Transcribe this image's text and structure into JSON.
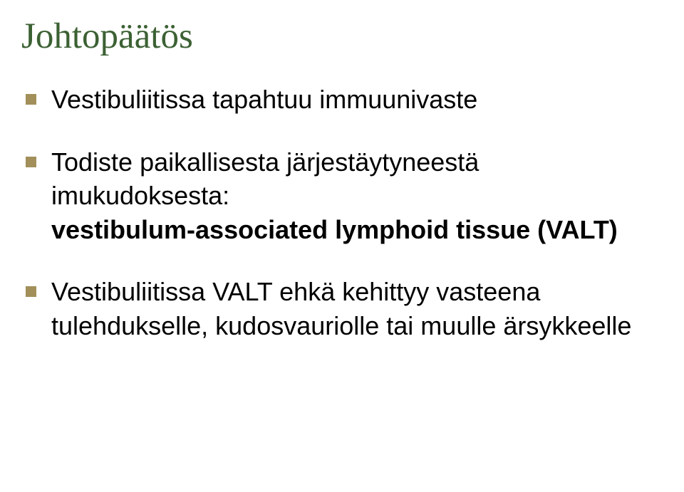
{
  "title": "Johtopäätös",
  "bullets": [
    {
      "plain": "Vestibuliitissa tapahtuu immuunivaste"
    },
    {
      "plain_prefix": "Todiste paikallisesta järjestäytyneestä imukudoksesta:",
      "bold": "vestibulum-associated lymphoid tissue (VALT)"
    },
    {
      "plain": "Vestibuliitissa VALT ehkä kehittyy vasteena tulehdukselle, kudosvauriolle tai muulle ärsykkeelle"
    }
  ],
  "colors": {
    "title_color": "#3c6134",
    "bullet_marker": "#a28f5a",
    "body_text": "#000000",
    "background": "#ffffff"
  },
  "typography": {
    "title_font": "Times New Roman",
    "title_size_pt": 38,
    "body_font": "Arial",
    "body_size_pt": 27,
    "bold_weight": 700
  },
  "type": "document-slide"
}
